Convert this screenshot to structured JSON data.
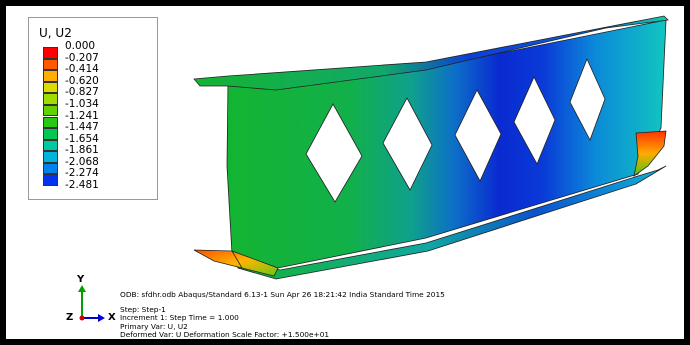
{
  "legend": {
    "title": "U, U2",
    "entries": [
      {
        "label": "0.000",
        "color": "#ff0000"
      },
      {
        "label": "-0.207",
        "color": "#ff5a00"
      },
      {
        "label": "-0.414",
        "color": "#ffaf00"
      },
      {
        "label": "-0.620",
        "color": "#dcdc00"
      },
      {
        "label": "-0.827",
        "color": "#a0dc00"
      },
      {
        "label": "-1.034",
        "color": "#64d200"
      },
      {
        "label": "-1.241",
        "color": "#28c814"
      },
      {
        "label": "-1.447",
        "color": "#00c850"
      },
      {
        "label": "-1.654",
        "color": "#00c8a0"
      },
      {
        "label": "-1.861",
        "color": "#00b4dc"
      },
      {
        "label": "-2.068",
        "color": "#0082f0"
      },
      {
        "label": "-2.274",
        "color": "#0032f0"
      },
      {
        "label": "-2.481",
        "color": "#0000d2"
      }
    ]
  },
  "triad": {
    "y": "Y",
    "z": "Z",
    "x": "X"
  },
  "info": {
    "line1": "ODB: sfdhr.odb    Abaqus/Standard 6.13-1    Sun Apr 26 18:21:42 India Standard Time 2015",
    "line2": "Step: Step-1",
    "line3": "Increment      1: Step Time =      1.000",
    "line4": "Primary Var: U, U2",
    "line5": "Deformed Var: U   Deformation Scale Factor: +1.500e+01"
  }
}
